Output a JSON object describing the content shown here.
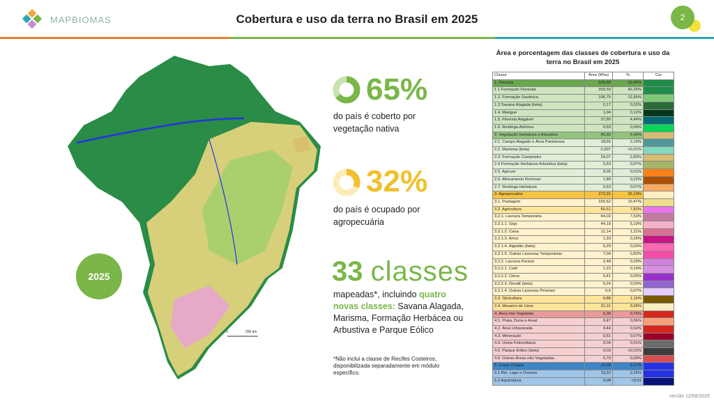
{
  "header": {
    "logo": "MAPBIOMAS",
    "title": "Cobertura e uso da terra no Brasil em 2025",
    "page": "2"
  },
  "map": {
    "year": "2025",
    "scale_start": "0",
    "scale_end": "250 km"
  },
  "stats": [
    {
      "value": 65,
      "label": "65%",
      "text": "do país é coberto por vegetação nativa",
      "color": "#7ab648",
      "track": "#c9e3b0"
    },
    {
      "value": 32,
      "label": "32%",
      "text": "do país é ocupado por agropecuária",
      "color": "#f0c02e",
      "track": "#fbecb8"
    }
  ],
  "classes": {
    "count": "33",
    "word": "classes",
    "text_a": "mapeadas*, incluindo ",
    "text_b": "quatro novas classes:",
    "text_c": " Savana Alagada, Marisma, Formação Herbácea ou Arbustiva e Parque Eólico"
  },
  "footnote": "*Não inclui a classe de Recifes Costeiros, disponibilizada separadamente em módulo específico.",
  "version": "versão 12/08/2026",
  "table": {
    "title": "Área e porcentagem das classes de cobertura e uso da terra no Brasil em 2025",
    "columns": [
      "Classe",
      "Área (Mha)",
      "%",
      "Cor"
    ],
    "rows": [
      {
        "name": "1. Floresta",
        "area": "505,80",
        "pct": "59,46%",
        "color": "#1f8d49",
        "bg": "#6aa84f"
      },
      {
        "name": "1.1 Formação Florestal",
        "area": "359,50",
        "pct": "42,26%",
        "color": "#1f8d49",
        "bg": "#cfe5c0"
      },
      {
        "name": "1.2. Formação Savânica",
        "area": "106,75",
        "pct": "12,55%",
        "color": "#7dc975",
        "bg": "#cfe5c0"
      },
      {
        "name": "1.3 Savana Alagada (beta)",
        "area": "0,17",
        "pct": "0,02%",
        "color": "#2a6b3a",
        "bg": "#cfe5c0"
      },
      {
        "name": "1.4. Mangue",
        "area": "1,04",
        "pct": "0,12%",
        "color": "#04381d",
        "bg": "#cfe5c0"
      },
      {
        "name": "1.5. Floresta Alagável",
        "area": "37,80",
        "pct": "4,44%",
        "color": "#026975",
        "bg": "#cfe5c0"
      },
      {
        "name": "1.6. Restinga Arbórea",
        "area": "0,53",
        "pct": "0,06%",
        "color": "#02d659",
        "bg": "#cfe5c0"
      },
      {
        "name": "2. Vegetação Herbácea e Arbustiva",
        "area": "45,92",
        "pct": "5,40%",
        "color": "#d6bc74",
        "bg": "#93c47d"
      },
      {
        "name": "2.1. Campo Alagado e Área Pantanosa",
        "area": "18,65",
        "pct": "2,19%",
        "color": "#519799",
        "bg": "#e0eed7"
      },
      {
        "name": "2.2. Marisma (beta)",
        "area": "0,007",
        "pct": "<0,01%",
        "color": "#83d8c0",
        "bg": "#e0eed7"
      },
      {
        "name": "2.3. Formação Campestre",
        "area": "24,07",
        "pct": "2,83%",
        "color": "#d6bc74",
        "bg": "#e0eed7"
      },
      {
        "name": "2.4 Formação Herbácea Arbustiva (beta)",
        "area": "0,63",
        "pct": "0,07%",
        "color": "#a6b56a",
        "bg": "#e0eed7"
      },
      {
        "name": "2.5. Apicum",
        "area": "0,05",
        "pct": "0,01%",
        "color": "#fc8114",
        "bg": "#e0eed7"
      },
      {
        "name": "2.6. Afloramento Rochoso",
        "area": "1,89",
        "pct": "0,22%",
        "color": "#ad5100",
        "bg": "#e0eed7"
      },
      {
        "name": "2.7. Restinga Herbácea",
        "area": "0,63",
        "pct": "0,07%",
        "color": "#ffaa5f",
        "bg": "#e0eed7"
      },
      {
        "name": "3. Agropecuária",
        "area": "273,31",
        "pct": "32,13%",
        "color": "#ffefc3",
        "bg": "#f6c242"
      },
      {
        "name": "3.1. Pastagem",
        "area": "165,62",
        "pct": "19,47%",
        "color": "#edde8e",
        "bg": "#fff2cc"
      },
      {
        "name": "3.2. Agricultura",
        "area": "66,51",
        "pct": "7,82%",
        "color": "#e974ed",
        "bg": "#ffe599"
      },
      {
        "name": "3.2.1. Lavoura Temporária",
        "area": "64,02",
        "pct": "7,53%",
        "color": "#c27ba0",
        "bg": "#fff2cc"
      },
      {
        "name": "3.2.1.1. Soja",
        "area": "44,19",
        "pct": "5,19%",
        "color": "#f5b3c8",
        "bg": "#fff2cc"
      },
      {
        "name": "3.2.1.2. Cana",
        "area": "11,14",
        "pct": "1,31%",
        "color": "#db7093",
        "bg": "#fff2cc"
      },
      {
        "name": "3.2.1.3. Arroz",
        "area": "1,33",
        "pct": "0,16%",
        "color": "#c71585",
        "bg": "#fff2cc"
      },
      {
        "name": "3.2.1.4. Algodão (beta)",
        "area": "0,29",
        "pct": "0,03%",
        "color": "#ff69b4",
        "bg": "#fff2cc"
      },
      {
        "name": "3.2.1.5. Outras Lavouras Temporárias",
        "area": "7,04",
        "pct": "0,83%",
        "color": "#f54ca9",
        "bg": "#fff2cc"
      },
      {
        "name": "3.2.2. Lavoura Perene",
        "area": "2,48",
        "pct": "0,29%",
        "color": "#d082de",
        "bg": "#fff2cc"
      },
      {
        "name": "3.2.2.1. Café",
        "area": "1,22",
        "pct": "0,14%",
        "color": "#d68fe2",
        "bg": "#fff2cc"
      },
      {
        "name": "3.2.2.2. Citrus",
        "area": "0,41",
        "pct": "0,05%",
        "color": "#9932cc",
        "bg": "#fff2cc"
      },
      {
        "name": "3.2.2.3. Dendê (beta)",
        "area": "0,24",
        "pct": "0,03%",
        "color": "#9065d0",
        "bg": "#fff2cc"
      },
      {
        "name": "3.2.1.4. Outras Lavouras Perenes",
        "area": "0,6",
        "pct": "0,07%",
        "color": "#e6ccff",
        "bg": "#fff2cc"
      },
      {
        "name": "3.3. Silvicultura",
        "area": "9,88",
        "pct": "1,16%",
        "color": "#7a5900",
        "bg": "#ffe599"
      },
      {
        "name": "3.4. Mosaico de Usos",
        "area": "31,31",
        "pct": "3,68%",
        "color": "#ffefc3",
        "bg": "#ffe599"
      },
      {
        "name": "4. Área não Vegetada",
        "area": "6,38",
        "pct": "0,75%",
        "color": "#d4271e",
        "bg": "#e99a9a"
      },
      {
        "name": "4.1. Praia, Duna e Areal",
        "area": "0,47",
        "pct": "0,06%",
        "color": "#ffa07a",
        "bg": "#f6d0d0"
      },
      {
        "name": "4.2. Área Urbanizada",
        "area": "4,44",
        "pct": "0,52%",
        "color": "#d4271e",
        "bg": "#f6d0d0"
      },
      {
        "name": "4.3. Mineração",
        "area": "0,61",
        "pct": "0,07%",
        "color": "#9c0027",
        "bg": "#f6d0d0"
      },
      {
        "name": "4.4. Usina Fotovoltaica",
        "area": "0,04",
        "pct": "0,01%",
        "color": "#6b6b6b",
        "bg": "#f6d0d0"
      },
      {
        "name": "4.5. Parque Eólico (beta)",
        "area": "0,03",
        "pct": "<0,01%",
        "color": "#3c3c3c",
        "bg": "#f6d0d0"
      },
      {
        "name": "4.6. Outras Áreas não Vegetadas",
        "area": "0,79",
        "pct": "0,09%",
        "color": "#db4d4f",
        "bg": "#f6d0d0"
      },
      {
        "name": "5. Corpo D'água",
        "area": "19,30",
        "pct": "2,27%",
        "color": "#2532e4",
        "bg": "#3d85c6"
      },
      {
        "name": "5.1 Rio, Lago e Oceano",
        "area": "19,22",
        "pct": "2,26%",
        "color": "#2532e4",
        "bg": "#9fc5e8"
      },
      {
        "name": "5.2 Aquicultura",
        "area": "0,08",
        "pct": "<0,01",
        "color": "#091077",
        "bg": "#9fc5e8"
      }
    ]
  }
}
